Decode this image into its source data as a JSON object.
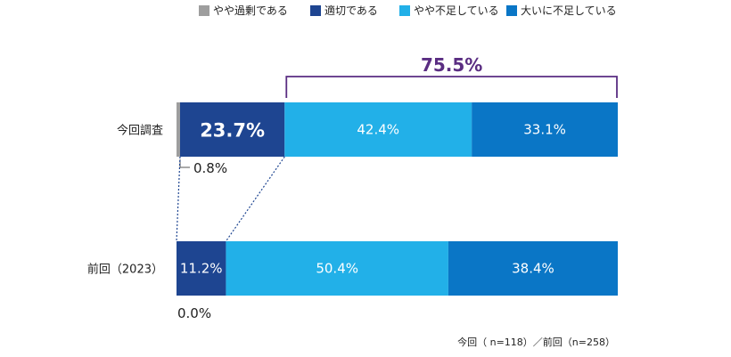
{
  "chart_data": {
    "type": "bar",
    "orientation": "horizontal",
    "stacked": true,
    "percent": true,
    "legend_position": "top",
    "categories": [
      "今回調査",
      "前回（2023）"
    ],
    "series": [
      {
        "name": "やや過剰である",
        "color": "#9e9e9e",
        "values": [
          0.8,
          0.0
        ]
      },
      {
        "name": "適切である",
        "color": "#1e4591",
        "values": [
          23.7,
          11.2
        ]
      },
      {
        "name": "やや不足している",
        "color": "#22b0e8",
        "values": [
          42.4,
          50.4
        ]
      },
      {
        "name": "大いに不足している",
        "color": "#0a76c6",
        "values": [
          33.1,
          38.4
        ]
      }
    ],
    "value_labels": [
      [
        "0.8%",
        "23.7%",
        "42.4%",
        "33.1%"
      ],
      [
        "0.0%",
        "11.2%",
        "50.4%",
        "38.4%"
      ]
    ],
    "annotation": {
      "label": "75.5%",
      "color": "#5a2d82",
      "spans_series": [
        2,
        3
      ],
      "row": 0
    },
    "note": "今回（ n=118）／前回（n=258）"
  }
}
